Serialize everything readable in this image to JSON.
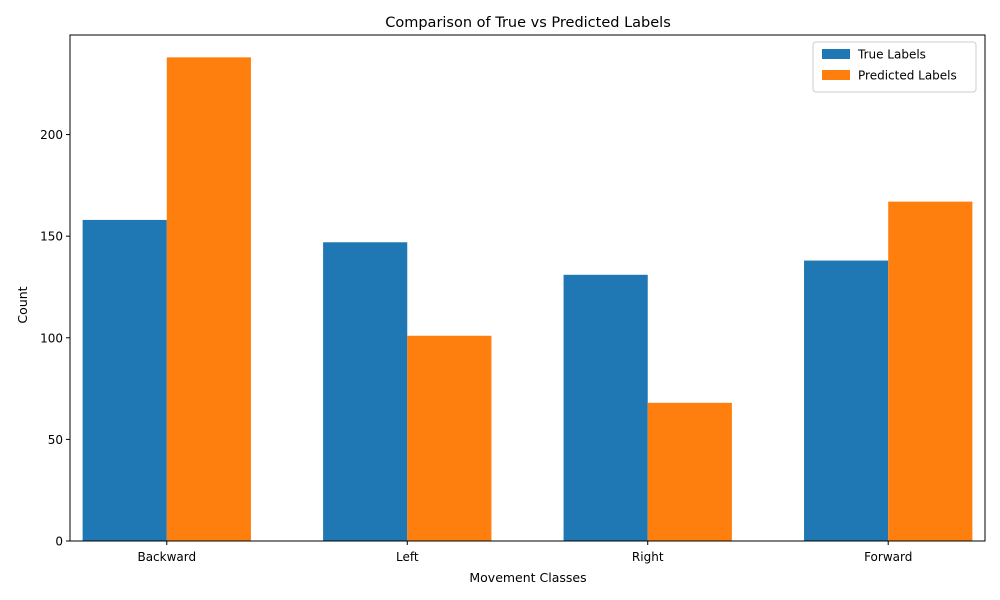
{
  "chart_data": {
    "type": "bar",
    "title": "Comparison of True vs Predicted Labels",
    "xlabel": "Movement Classes",
    "ylabel": "Count",
    "categories": [
      "Backward",
      "Left",
      "Right",
      "Forward"
    ],
    "series": [
      {
        "name": "True Labels",
        "color": "#1f77b4",
        "values": [
          158,
          147,
          131,
          138
        ]
      },
      {
        "name": "Predicted Labels",
        "color": "#ff7f0e",
        "values": [
          238,
          101,
          68,
          167
        ]
      }
    ],
    "ylim": [
      0,
      249
    ],
    "yticks": [
      0,
      50,
      100,
      150,
      200
    ],
    "grid": false,
    "legend": "top-right"
  }
}
